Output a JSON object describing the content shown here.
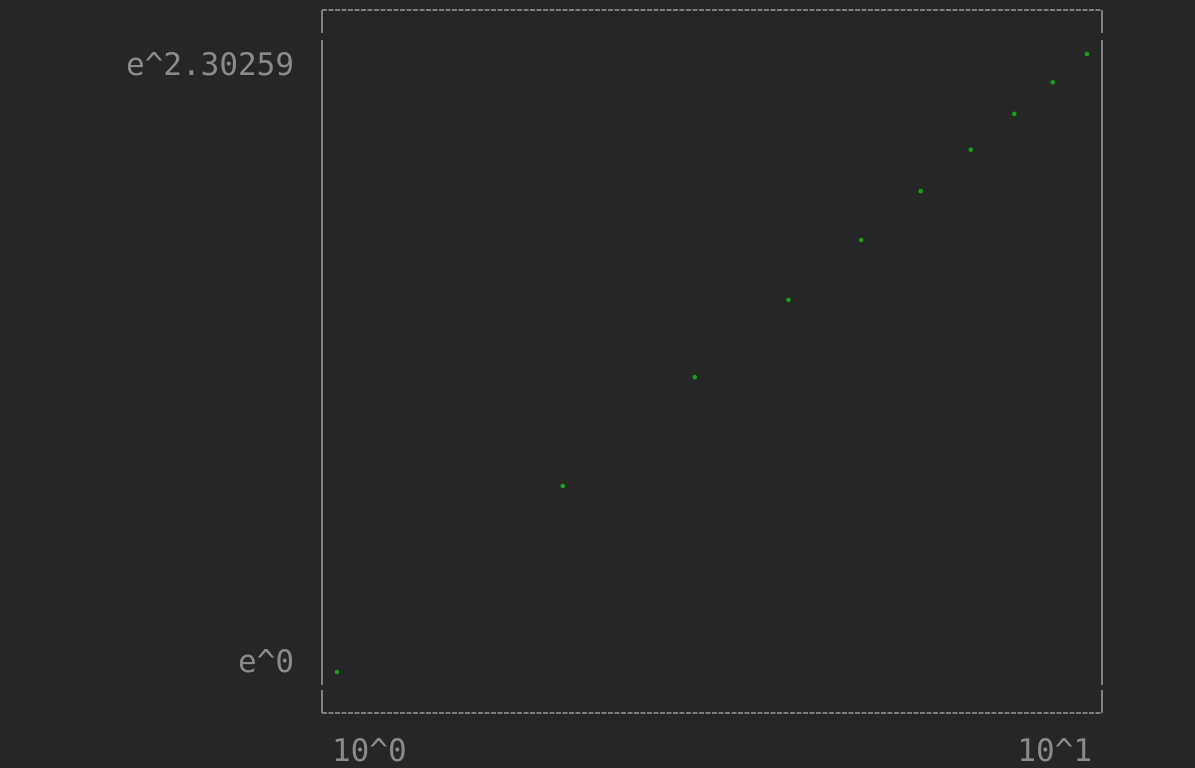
{
  "chart_data": {
    "type": "scatter",
    "title": "",
    "xlabel": "",
    "ylabel": "",
    "x_scale": "log10",
    "y_scale": "ln",
    "xlim": [
      1,
      10
    ],
    "ylim": [
      1,
      10
    ],
    "x_ticks": [
      {
        "value": 1,
        "label": "10^0"
      },
      {
        "value": 10,
        "label": "10^1"
      }
    ],
    "y_ticks": [
      {
        "value": 1,
        "label": "e^0"
      },
      {
        "value": 10,
        "label": "e^2.30259"
      }
    ],
    "grid": false,
    "legend": "none",
    "series": [
      {
        "color": "#16a016",
        "x": [
          1,
          2,
          3,
          4,
          5,
          6,
          7,
          8,
          9,
          10
        ],
        "y": [
          1,
          2,
          3,
          4,
          5,
          6,
          7,
          8,
          9,
          10
        ]
      }
    ]
  }
}
